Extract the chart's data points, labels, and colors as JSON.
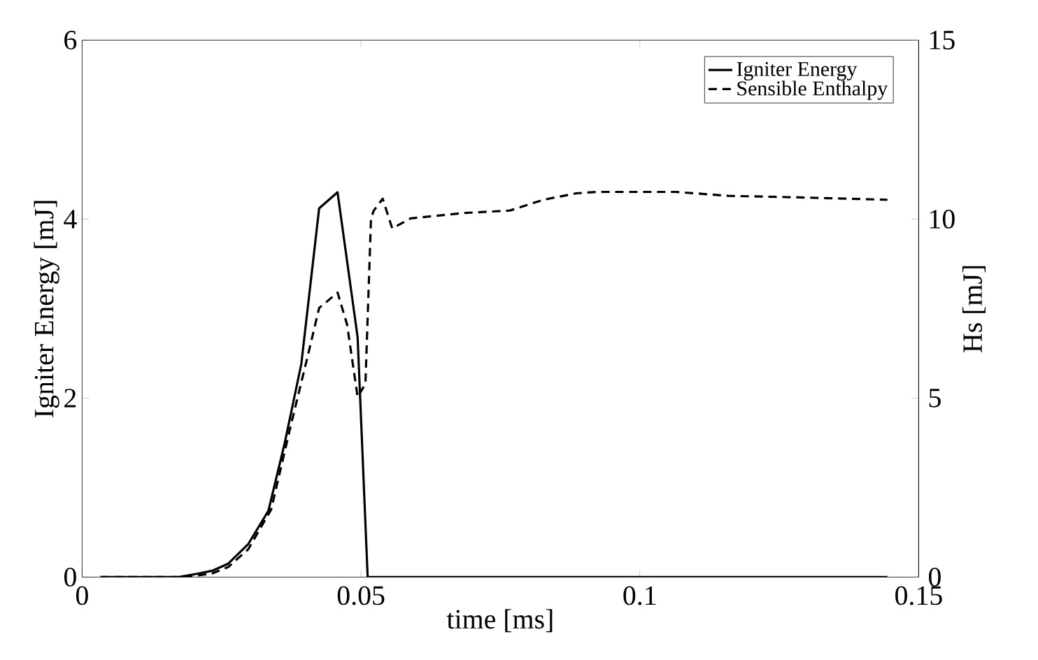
{
  "chart_data": {
    "type": "line",
    "xlabel": "time [ms]",
    "ylabel": "Igniter Energy [mJ]",
    "y2label": "Hs [mJ]",
    "xlim": [
      0,
      0.15
    ],
    "xticks": [
      0,
      0.05,
      0.1,
      0.15
    ],
    "ylim": [
      0,
      6
    ],
    "yticks": [
      0,
      2,
      4,
      6
    ],
    "y2lim": [
      0,
      15
    ],
    "y2ticks": [
      0,
      5,
      10,
      15
    ],
    "legend": "top right",
    "series": [
      {
        "name": "Igniter Energy",
        "color": "#000000",
        "line_style": "solid",
        "x": [
          0.0033,
          0.0173,
          0.0209,
          0.0233,
          0.0262,
          0.0298,
          0.0334,
          0.0363,
          0.0393,
          0.0425,
          0.0458,
          0.0494,
          0.0512,
          0.1444
        ],
        "values": [
          0,
          0,
          0.04,
          0.07,
          0.15,
          0.37,
          0.74,
          1.49,
          2.38,
          4.12,
          4.3,
          2.68,
          0,
          0
        ]
      },
      {
        "name": "Sensible Enthalpy",
        "color": "#000000",
        "line_style": "dashed",
        "axis": "y2",
        "x": [
          0.0033,
          0.0126,
          0.0185,
          0.0233,
          0.0262,
          0.0298,
          0.0339,
          0.0375,
          0.0404,
          0.0425,
          0.044,
          0.0458,
          0.0475,
          0.0494,
          0.0508,
          0.0518,
          0.0523,
          0.0539,
          0.0556,
          0.0589,
          0.0684,
          0.0767,
          0.0827,
          0.0886,
          0.0922,
          0.1064,
          0.1159,
          0.1278,
          0.1444
        ],
        "values": [
          0,
          0,
          0,
          0.1,
          0.28,
          0.78,
          1.89,
          4.29,
          6.14,
          7.52,
          7.71,
          7.95,
          7.06,
          5.03,
          5.4,
          10.02,
          10.24,
          10.57,
          9.74,
          10.02,
          10.17,
          10.24,
          10.54,
          10.72,
          10.76,
          10.76,
          10.65,
          10.61,
          10.54
        ]
      }
    ]
  }
}
